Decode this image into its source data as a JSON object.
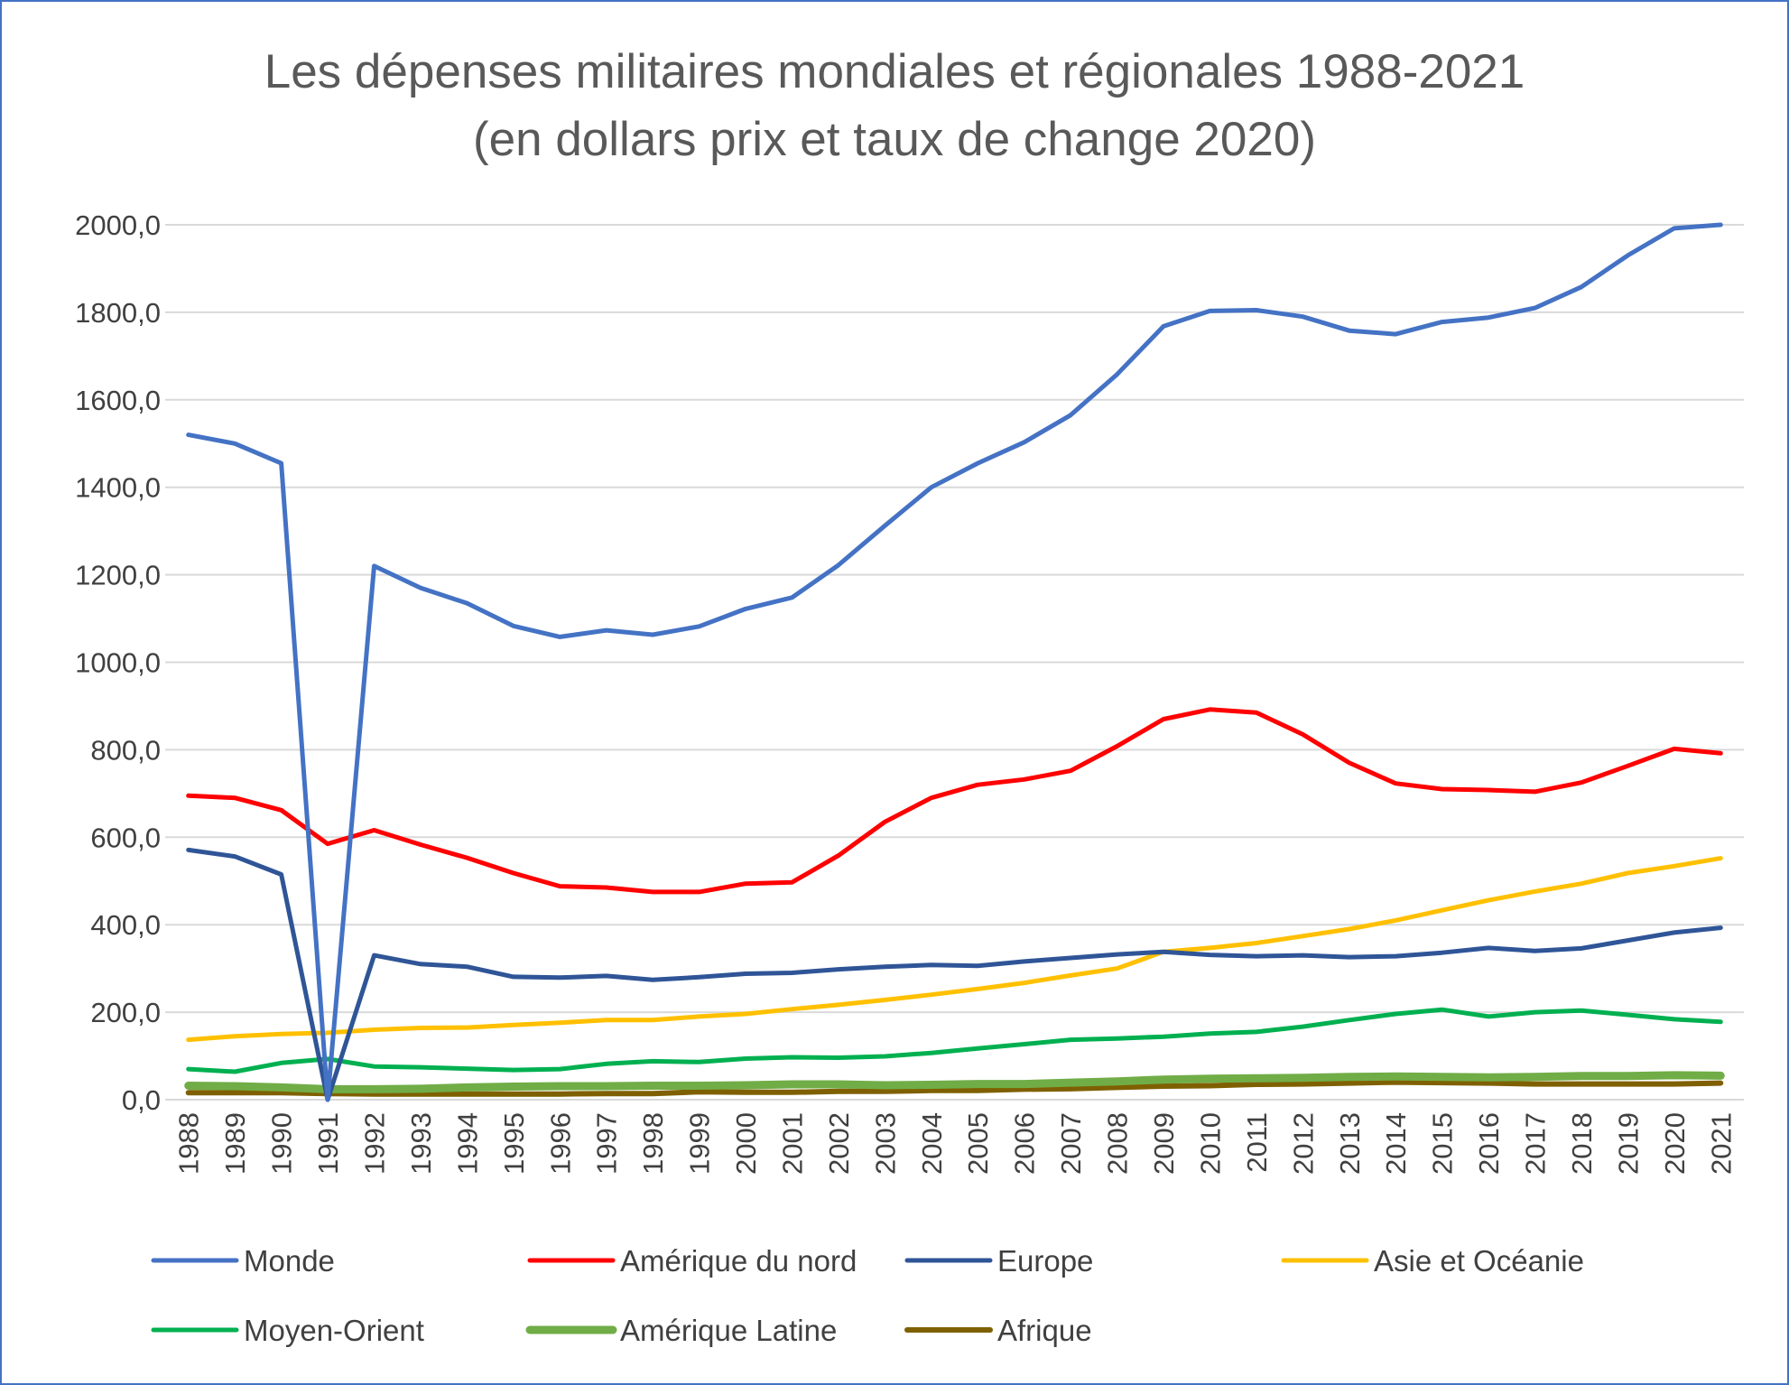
{
  "chart_data": {
    "type": "line",
    "title": "Les dépenses militaires mondiales et régionales 1988-2021",
    "subtitle": "(en dollars prix et taux de change 2020)",
    "xlabel": "",
    "ylabel": "",
    "ylim": [
      0,
      2000
    ],
    "yticks": [
      0,
      200,
      400,
      600,
      800,
      1000,
      1200,
      1400,
      1600,
      1800,
      2000
    ],
    "ytick_labels": [
      "0,0",
      "200,0",
      "400,0",
      "600,0",
      "800,0",
      "1000,0",
      "1200,0",
      "1400,0",
      "1600,0",
      "1800,0",
      "2000,0"
    ],
    "grid": true,
    "legend_position": "bottom",
    "x": [
      "1988",
      "1989",
      "1990",
      "1991",
      "1992",
      "1993",
      "1994",
      "1995",
      "1996",
      "1997",
      "1998",
      "1999",
      "2000",
      "2001",
      "2002",
      "2003",
      "2004",
      "2005",
      "2006",
      "2007",
      "2008",
      "2009",
      "2010",
      "2011",
      "2012",
      "2013",
      "2014",
      "2015",
      "2016",
      "2017",
      "2018",
      "2019",
      "2020",
      "2021"
    ],
    "series": [
      {
        "name": "Monde",
        "color": "#4472c4",
        "width": 5,
        "values": [
          1520,
          1500,
          1455,
          0,
          1220,
          1170,
          1135,
          1083,
          1058,
          1073,
          1063,
          1082,
          1122,
          1148,
          1222,
          1312,
          1400,
          1455,
          1503,
          1565,
          1658,
          1768,
          1803,
          1805,
          1790,
          1758,
          1750,
          1778,
          1788,
          1810,
          1858,
          1930,
          1992,
          2000
        ]
      },
      {
        "name": "Amérique du nord",
        "color": "#ff0000",
        "width": 5,
        "values": [
          695,
          690,
          662,
          585,
          616,
          583,
          553,
          518,
          488,
          485,
          475,
          475,
          494,
          497,
          558,
          635,
          690,
          720,
          732,
          752,
          808,
          870,
          892,
          885,
          835,
          770,
          723,
          710,
          708,
          704,
          725,
          763,
          802,
          792
        ]
      },
      {
        "name": "Europe",
        "color": "#2f5597",
        "width": 5,
        "values": [
          571,
          556,
          515,
          0,
          330,
          310,
          304,
          281,
          279,
          283,
          274,
          280,
          288,
          290,
          298,
          304,
          308,
          306,
          316,
          324,
          332,
          338,
          331,
          328,
          330,
          326,
          328,
          336,
          347,
          340,
          346,
          364,
          382,
          393
        ]
      },
      {
        "name": "Asie et Océanie",
        "color": "#ffc000",
        "width": 5,
        "values": [
          137,
          145,
          150,
          153,
          160,
          164,
          165,
          171,
          176,
          182,
          182,
          190,
          196,
          207,
          217,
          228,
          240,
          253,
          267,
          284,
          300,
          338,
          347,
          358,
          374,
          390,
          410,
          433,
          456,
          476,
          494,
          518,
          534,
          552
        ]
      },
      {
        "name": "Moyen-Orient",
        "color": "#00b050",
        "width": 5,
        "values": [
          70,
          64,
          84,
          93,
          76,
          74,
          71,
          68,
          70,
          82,
          88,
          86,
          94,
          97,
          96,
          99,
          107,
          117,
          127,
          137,
          140,
          144,
          151,
          155,
          167,
          182,
          196,
          206,
          190,
          200,
          204,
          194,
          184,
          178
        ]
      },
      {
        "name": "Amérique Latine",
        "color": "#70ad47",
        "width": 9,
        "values": [
          32,
          31,
          28,
          24,
          24,
          25,
          28,
          30,
          31,
          31,
          32,
          32,
          33,
          35,
          35,
          33,
          34,
          36,
          36,
          39,
          42,
          46,
          48,
          49,
          50,
          52,
          53,
          52,
          51,
          52,
          54,
          54,
          56,
          55
        ]
      },
      {
        "name": "Afrique",
        "color": "#7f6000",
        "width": 6,
        "values": [
          16,
          16,
          16,
          14,
          13,
          13,
          13,
          13,
          13,
          14,
          14,
          18,
          17,
          17,
          19,
          19,
          21,
          21,
          24,
          25,
          28,
          31,
          32,
          35,
          36,
          38,
          40,
          39,
          38,
          36,
          36,
          36,
          36,
          38
        ]
      }
    ]
  }
}
